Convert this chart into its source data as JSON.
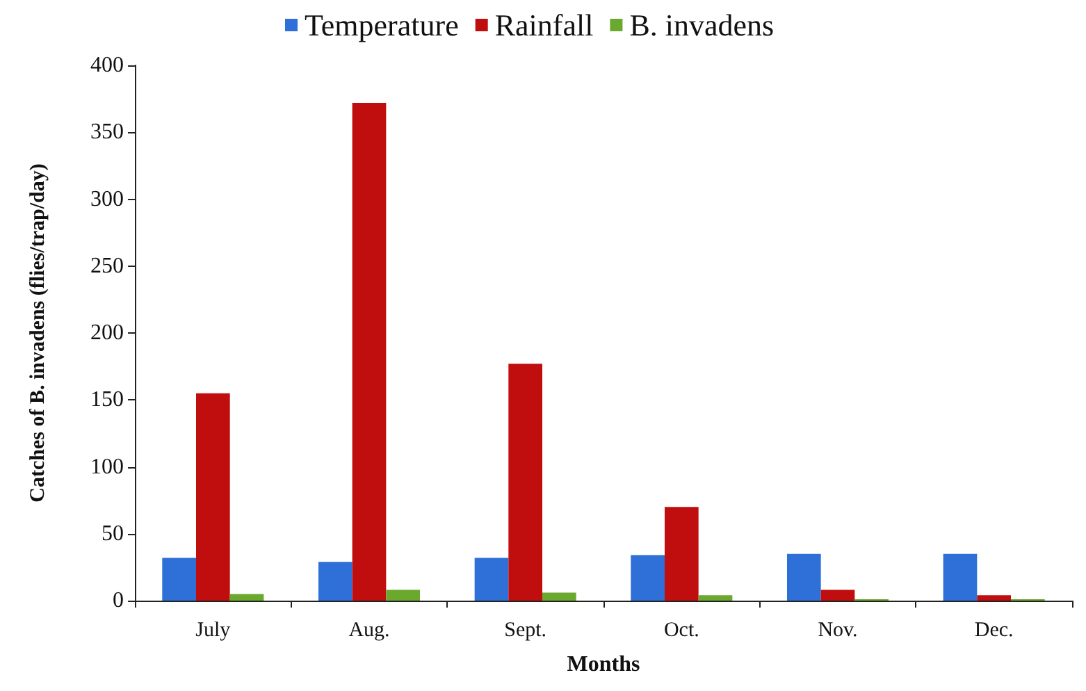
{
  "chart_data": {
    "type": "bar",
    "categories": [
      "July",
      "Aug.",
      "Sept.",
      "Oct.",
      "Nov.",
      "Dec."
    ],
    "xlabel": "Months",
    "ylabel": "Catches of B. invadens (flies/trap/day)",
    "series": [
      {
        "name": "Temperature",
        "color": "#2e6fd8",
        "values": [
          32,
          29,
          32,
          34,
          35,
          35
        ]
      },
      {
        "name": "Rainfall",
        "color": "#c00d0d",
        "values": [
          155,
          372,
          177,
          70,
          8,
          4
        ]
      },
      {
        "name": "B. invadens",
        "color": "#6aa82e",
        "values": [
          5,
          8,
          6,
          4,
          1,
          1
        ]
      }
    ],
    "ylim": [
      0,
      400
    ],
    "yticks": [
      0,
      50,
      100,
      150,
      200,
      250,
      300,
      350,
      400
    ],
    "grid": false,
    "legend": "top"
  }
}
